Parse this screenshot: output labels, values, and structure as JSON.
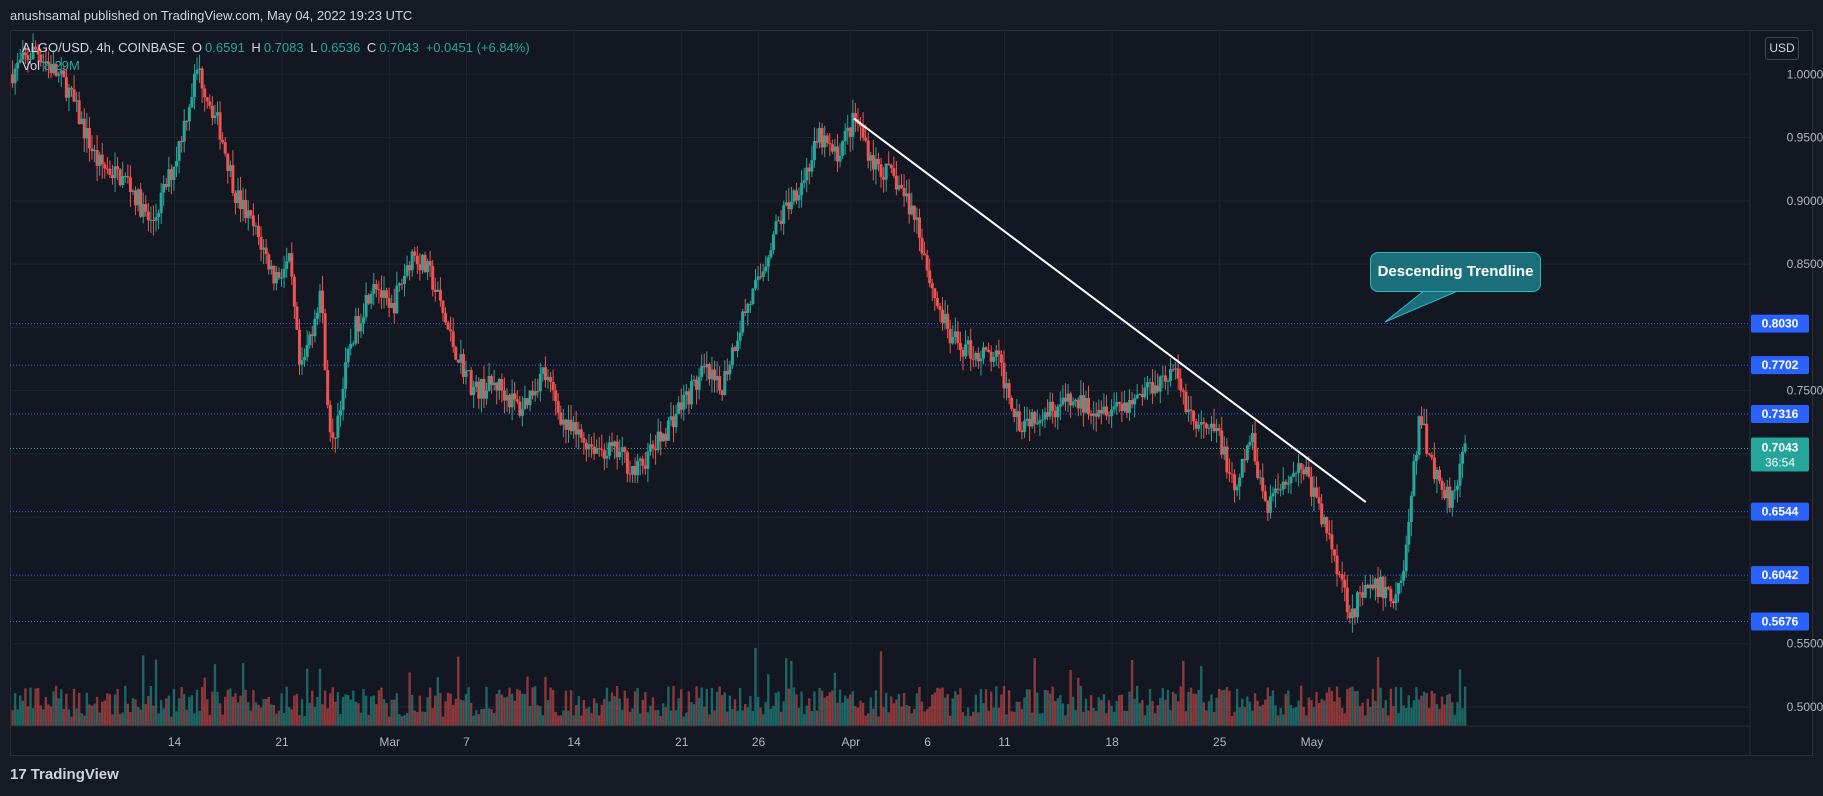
{
  "header": {
    "published": "anushsamal published on TradingView.com, May 04, 2022 19:23 UTC"
  },
  "legend": {
    "symbol": "ALGO/USD, 4h, COINBASE",
    "open_label": "O",
    "open": "0.6591",
    "high_label": "H",
    "high": "0.7083",
    "low_label": "L",
    "low": "0.6536",
    "close_label": "C",
    "close": "0.7043",
    "change": "+0.0451 (+6.84%)",
    "volume_label": "Vol",
    "volume": "8.29M"
  },
  "currency_button": "USD",
  "annotation": {
    "label": "Descending Trendline"
  },
  "footer": {
    "brand": "TradingView",
    "logo_glyph": "17"
  },
  "colors": {
    "up": "#26a69a",
    "down": "#ef5350",
    "level": "#2962ff",
    "background": "#131722"
  },
  "chart_data": {
    "type": "candlestick",
    "interval": "4h",
    "ylim": [
      0.485,
      1.035
    ],
    "y_ticks": [
      "1.0000",
      "0.9500",
      "0.9000",
      "0.8500",
      "0.7500",
      "0.5500",
      "0.5000"
    ],
    "x_ticks": [
      "14",
      "21",
      "Mar",
      "7",
      "14",
      "21",
      "26",
      "Apr",
      "6",
      "11",
      "18",
      "25",
      "May"
    ],
    "x_tick_positions": [
      1.0,
      8.0,
      15.0,
      20.0,
      27.0,
      34.0,
      39.0,
      45.0,
      50.0,
      55.0,
      62.0,
      69.0,
      75.0
    ],
    "x_range": [
      -9.7,
      103.5
    ],
    "current_price": {
      "value": "0.7043",
      "countdown": "36:54"
    },
    "horizontal_levels": [
      {
        "label": "0.8030",
        "value": 0.803
      },
      {
        "label": "0.7702",
        "value": 0.7702
      },
      {
        "label": "0.7316",
        "value": 0.7316
      },
      {
        "label": "0.6544",
        "value": 0.6544
      },
      {
        "label": "0.6042",
        "value": 0.6042
      },
      {
        "label": "0.5676",
        "value": 0.5676
      }
    ],
    "trendline": {
      "from": {
        "x": 45.2,
        "y": 0.965
      },
      "to": {
        "x": 78.5,
        "y": 0.662
      }
    },
    "price_path": [
      [
        -9.7,
        1.0
      ],
      [
        -8,
        1.02
      ],
      [
        -6,
        0.99
      ],
      [
        -4,
        0.93
      ],
      [
        -2,
        0.915
      ],
      [
        -0.5,
        0.88
      ],
      [
        1,
        0.93
      ],
      [
        2.5,
        1.005
      ],
      [
        4,
        0.955
      ],
      [
        5,
        0.905
      ],
      [
        6.5,
        0.87
      ],
      [
        7.5,
        0.84
      ],
      [
        8.5,
        0.85
      ],
      [
        9.2,
        0.76
      ],
      [
        10.5,
        0.83
      ],
      [
        11.2,
        0.7
      ],
      [
        12.5,
        0.79
      ],
      [
        14,
        0.84
      ],
      [
        15,
        0.81
      ],
      [
        16.5,
        0.86
      ],
      [
        17.7,
        0.84
      ],
      [
        19,
        0.79
      ],
      [
        20.5,
        0.75
      ],
      [
        22,
        0.755
      ],
      [
        23.5,
        0.735
      ],
      [
        25,
        0.765
      ],
      [
        26.5,
        0.72
      ],
      [
        28.5,
        0.705
      ],
      [
        30,
        0.7
      ],
      [
        31,
        0.685
      ],
      [
        32.5,
        0.71
      ],
      [
        34,
        0.74
      ],
      [
        35.5,
        0.765
      ],
      [
        36.5,
        0.75
      ],
      [
        38,
        0.81
      ],
      [
        39,
        0.835
      ],
      [
        40,
        0.875
      ],
      [
        41,
        0.9
      ],
      [
        42,
        0.92
      ],
      [
        43,
        0.95
      ],
      [
        44,
        0.935
      ],
      [
        45.3,
        0.965
      ],
      [
        46.5,
        0.93
      ],
      [
        48,
        0.915
      ],
      [
        49.3,
        0.885
      ],
      [
        50.3,
        0.83
      ],
      [
        51.5,
        0.79
      ],
      [
        53,
        0.78
      ],
      [
        54.5,
        0.775
      ],
      [
        56,
        0.725
      ],
      [
        57.5,
        0.735
      ],
      [
        59,
        0.74
      ],
      [
        61,
        0.738
      ],
      [
        63,
        0.74
      ],
      [
        64.5,
        0.755
      ],
      [
        66,
        0.765
      ],
      [
        67.5,
        0.72
      ],
      [
        69,
        0.715
      ],
      [
        70,
        0.665
      ],
      [
        71,
        0.715
      ],
      [
        72,
        0.66
      ],
      [
        73.5,
        0.685
      ],
      [
        74.5,
        0.69
      ],
      [
        75.5,
        0.655
      ],
      [
        76.5,
        0.62
      ],
      [
        77.5,
        0.575
      ],
      [
        78.5,
        0.59
      ],
      [
        79.5,
        0.595
      ],
      [
        80.3,
        0.585
      ],
      [
        81,
        0.61
      ],
      [
        82,
        0.73
      ],
      [
        83,
        0.685
      ],
      [
        84,
        0.665
      ],
      [
        85,
        0.7043
      ]
    ],
    "volume_ylim": [
      0,
      14.5
    ]
  }
}
